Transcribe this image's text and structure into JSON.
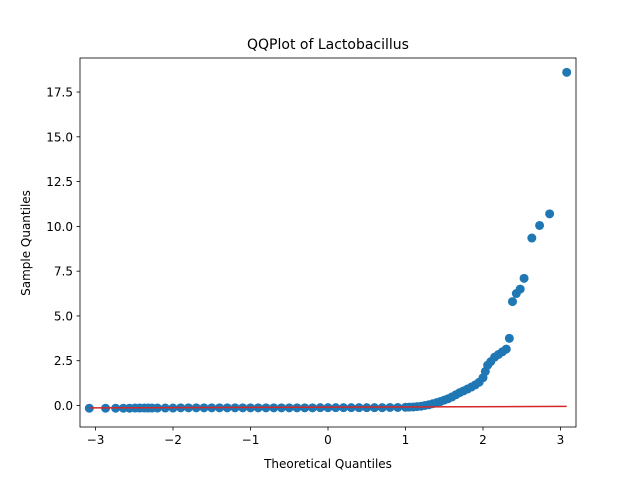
{
  "chart_data": {
    "type": "scatter",
    "title": "QQPlot of Lactobacillus",
    "xlabel": "Theoretical Quantiles",
    "ylabel": "Sample Quantiles",
    "xlim": [
      -3.2,
      3.2
    ],
    "ylim": [
      -1.2,
      19.4
    ],
    "xticks": [
      -3,
      -2,
      -1,
      0,
      1,
      2,
      3
    ],
    "xtick_labels": [
      "−3",
      "−2",
      "−1",
      "0",
      "1",
      "2",
      "3"
    ],
    "yticks": [
      0.0,
      2.5,
      5.0,
      7.5,
      10.0,
      12.5,
      15.0,
      17.5
    ],
    "ytick_labels": [
      "0.0",
      "2.5",
      "5.0",
      "7.5",
      "10.0",
      "12.5",
      "15.0",
      "17.5"
    ],
    "grid": false,
    "colors": {
      "points": "#1f77b4",
      "reference_line": "#d62728",
      "axes": "#000000"
    },
    "reference_line": {
      "x": [
        -3.08,
        3.08
      ],
      "y": [
        -0.13,
        -0.05
      ]
    },
    "sample_points": {
      "x": [
        -3.08,
        -2.87,
        -2.74,
        -2.64,
        -2.56,
        -2.49,
        -2.43,
        -2.37,
        -2.32,
        -2.27,
        -2.2,
        -2.1,
        -2.0,
        -1.9,
        -1.8,
        -1.7,
        -1.6,
        -1.5,
        -1.4,
        -1.3,
        -1.2,
        -1.1,
        -1.0,
        -0.9,
        -0.8,
        -0.7,
        -0.6,
        -0.5,
        -0.4,
        -0.3,
        -0.2,
        -0.1,
        0.0,
        0.1,
        0.2,
        0.3,
        0.4,
        0.5,
        0.6,
        0.7,
        0.8,
        0.9,
        1.0,
        1.05,
        1.1,
        1.15,
        1.2,
        1.25,
        1.3,
        1.35,
        1.4,
        1.45,
        1.5,
        1.55,
        1.6,
        1.65,
        1.7,
        1.75,
        1.8,
        1.85,
        1.9,
        1.95,
        2.0,
        2.03,
        2.06,
        2.1,
        2.15,
        2.2,
        2.25,
        2.3,
        2.34,
        2.38,
        2.43,
        2.48,
        2.53,
        2.63,
        2.73,
        2.86,
        3.08
      ],
      "y": [
        -0.15,
        -0.15,
        -0.15,
        -0.15,
        -0.15,
        -0.14,
        -0.14,
        -0.14,
        -0.14,
        -0.14,
        -0.14,
        -0.14,
        -0.14,
        -0.13,
        -0.13,
        -0.13,
        -0.13,
        -0.13,
        -0.13,
        -0.13,
        -0.13,
        -0.13,
        -0.13,
        -0.13,
        -0.13,
        -0.13,
        -0.13,
        -0.13,
        -0.13,
        -0.13,
        -0.13,
        -0.12,
        -0.12,
        -0.12,
        -0.12,
        -0.12,
        -0.12,
        -0.12,
        -0.12,
        -0.12,
        -0.11,
        -0.11,
        -0.1,
        -0.09,
        -0.08,
        -0.06,
        -0.04,
        0.0,
        0.04,
        0.1,
        0.16,
        0.22,
        0.3,
        0.38,
        0.48,
        0.6,
        0.72,
        0.82,
        0.92,
        1.03,
        1.15,
        1.3,
        1.55,
        1.9,
        2.25,
        2.45,
        2.7,
        2.85,
        3.0,
        3.15,
        3.75,
        5.8,
        6.25,
        6.5,
        7.1,
        9.35,
        10.05,
        10.7,
        18.6
      ]
    }
  }
}
